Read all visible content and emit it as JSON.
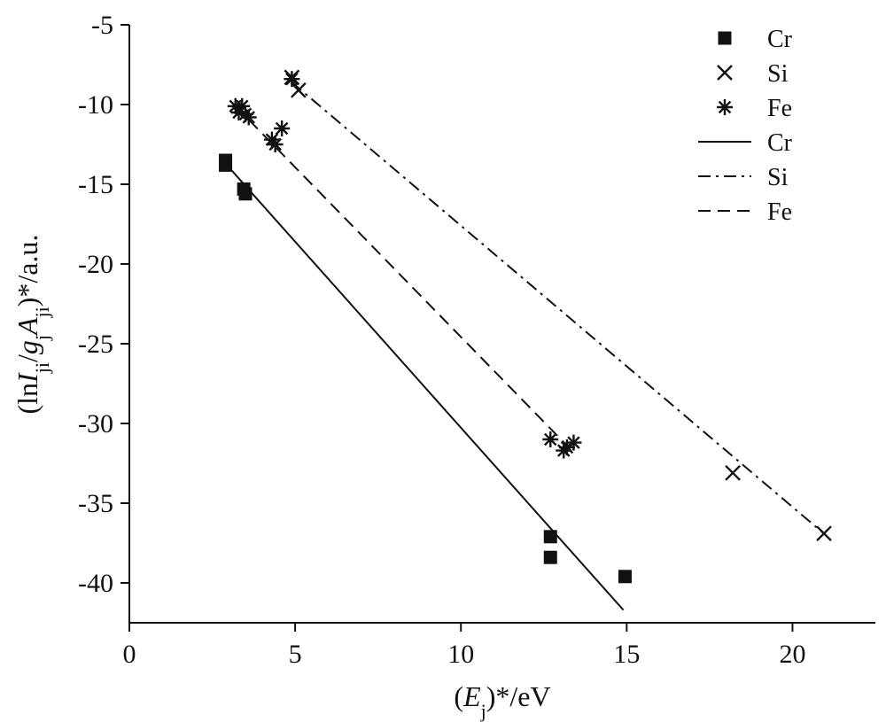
{
  "chart_data": {
    "type": "scatter",
    "x_axis": {
      "label_parts": [
        "(",
        "E",
        "j",
        ")*/eV"
      ],
      "range": [
        0,
        22.5
      ],
      "ticks": [
        0,
        5,
        10,
        15,
        20
      ],
      "tick_labels": [
        "0",
        "5",
        "10",
        "15",
        "20"
      ]
    },
    "y_axis": {
      "label_parts": [
        "(ln",
        "I",
        "ji",
        "/",
        "g",
        "j",
        "A",
        "ji",
        ")*/a.u."
      ],
      "range": [
        -42.5,
        -5
      ],
      "ticks": [
        -5,
        -10,
        -15,
        -20,
        -25,
        -30,
        -35,
        -40
      ],
      "tick_labels": [
        "-5",
        "-10",
        "-15",
        "-20",
        "-25",
        "-30",
        "-35",
        "-40"
      ]
    },
    "grid": false,
    "legend_position": "top-right",
    "series": [
      {
        "name": "Cr",
        "kind": "points",
        "marker": "square",
        "points": [
          [
            2.9,
            -13.5
          ],
          [
            2.9,
            -13.8
          ],
          [
            3.45,
            -15.3
          ],
          [
            3.5,
            -15.6
          ],
          [
            12.7,
            -37.1
          ],
          [
            12.7,
            -38.4
          ],
          [
            14.95,
            -39.6
          ]
        ]
      },
      {
        "name": "Si",
        "kind": "points",
        "marker": "cross",
        "points": [
          [
            4.9,
            -8.3
          ],
          [
            5.1,
            -9.1
          ],
          [
            18.2,
            -33.1
          ],
          [
            20.95,
            -36.9
          ]
        ]
      },
      {
        "name": "Fe",
        "kind": "points",
        "marker": "asterisk",
        "points": [
          [
            3.2,
            -10.1
          ],
          [
            3.3,
            -10.5
          ],
          [
            3.4,
            -10.1
          ],
          [
            3.5,
            -10.6
          ],
          [
            3.6,
            -10.8
          ],
          [
            4.3,
            -12.2
          ],
          [
            4.4,
            -12.5
          ],
          [
            4.6,
            -11.5
          ],
          [
            4.9,
            -8.4
          ],
          [
            12.7,
            -31.0
          ],
          [
            13.1,
            -31.7
          ],
          [
            13.2,
            -31.5
          ],
          [
            13.4,
            -31.2
          ]
        ]
      },
      {
        "name": "Cr",
        "kind": "line",
        "dash": "solid",
        "points": [
          [
            2.9,
            -13.7
          ],
          [
            14.9,
            -41.7
          ]
        ]
      },
      {
        "name": "Si",
        "kind": "line",
        "dash": "dashdot",
        "points": [
          [
            4.9,
            -8.6
          ],
          [
            21.0,
            -37.0
          ]
        ]
      },
      {
        "name": "Fe",
        "kind": "line",
        "dash": "dashed",
        "points": [
          [
            3.2,
            -10.1
          ],
          [
            13.3,
            -31.6
          ]
        ]
      }
    ]
  }
}
